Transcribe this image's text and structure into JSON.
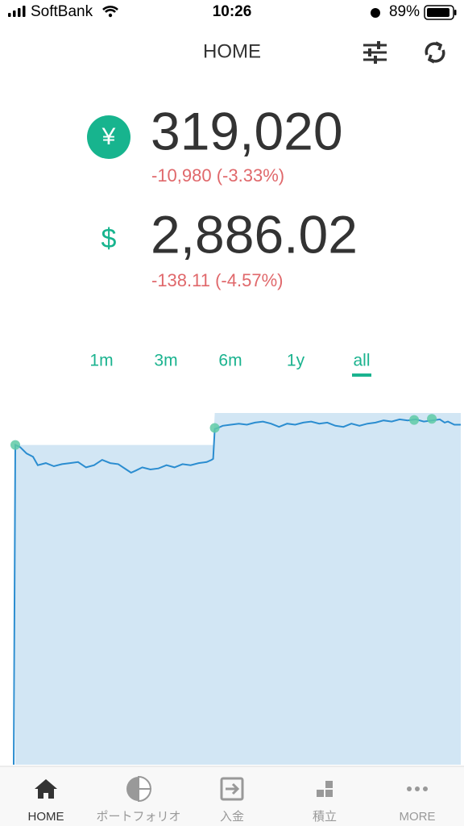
{
  "status_bar": {
    "carrier": "SoftBank",
    "time": "10:26",
    "battery": "89%"
  },
  "header": {
    "title": "HOME"
  },
  "balances": [
    {
      "currency": "¥",
      "amount": "319,020",
      "change": "-10,980 (-3.33%)"
    },
    {
      "currency": "$",
      "amount": "2,886.02",
      "change": "-138.11 (-4.57%)"
    }
  ],
  "tabs": {
    "items": [
      "1m",
      "3m",
      "6m",
      "1y",
      "all"
    ],
    "active": 4,
    "color": "#1bb38f"
  },
  "chart_data": {
    "type": "line",
    "xlim": [
      0,
      278
    ],
    "ylim": [
      0,
      331500
    ],
    "series": [
      {
        "kind": "area",
        "color": "#d2e6f4",
        "x": [
          1,
          124,
          125,
          278
        ],
        "values": [
          300000,
          300000,
          330000,
          330000
        ]
      },
      {
        "kind": "line",
        "color": "#2b8dd0",
        "x": [
          0,
          1,
          4,
          8,
          12,
          15,
          20,
          25,
          30,
          35,
          40,
          45,
          50,
          55,
          60,
          65,
          70,
          73,
          76,
          80,
          85,
          90,
          95,
          100,
          105,
          110,
          115,
          120,
          123,
          124,
          125,
          127,
          130,
          135,
          140,
          145,
          150,
          155,
          160,
          165,
          170,
          175,
          180,
          185,
          190,
          195,
          200,
          205,
          210,
          215,
          220,
          225,
          230,
          235,
          240,
          245,
          250,
          255,
          260,
          265,
          268,
          270,
          274,
          278
        ],
        "values": [
          0,
          300000,
          298000,
          292000,
          289000,
          281000,
          283000,
          280000,
          282000,
          283000,
          284000,
          279000,
          281000,
          286000,
          283000,
          282000,
          277000,
          274000,
          276000,
          279000,
          277000,
          278000,
          281000,
          279000,
          282000,
          281000,
          283000,
          284000,
          286000,
          287000,
          315000,
          316000,
          318000,
          319000,
          320000,
          319000,
          321000,
          322000,
          320000,
          317000,
          320000,
          319000,
          321000,
          322000,
          320000,
          321000,
          318000,
          317000,
          320000,
          318000,
          320000,
          321000,
          323000,
          322000,
          324000,
          323000,
          324000,
          322000,
          323000,
          324000,
          321000,
          322000,
          319000,
          319020
        ]
      },
      {
        "kind": "markers",
        "color": "#5fcaa6",
        "x": [
          1,
          125,
          249,
          260
        ],
        "values": [
          300000,
          316000,
          323500,
          324500
        ]
      }
    ]
  },
  "nav": {
    "items": [
      "HOME",
      "ポートフォリオ",
      "入金",
      "積立",
      "MORE"
    ],
    "active": 0
  }
}
